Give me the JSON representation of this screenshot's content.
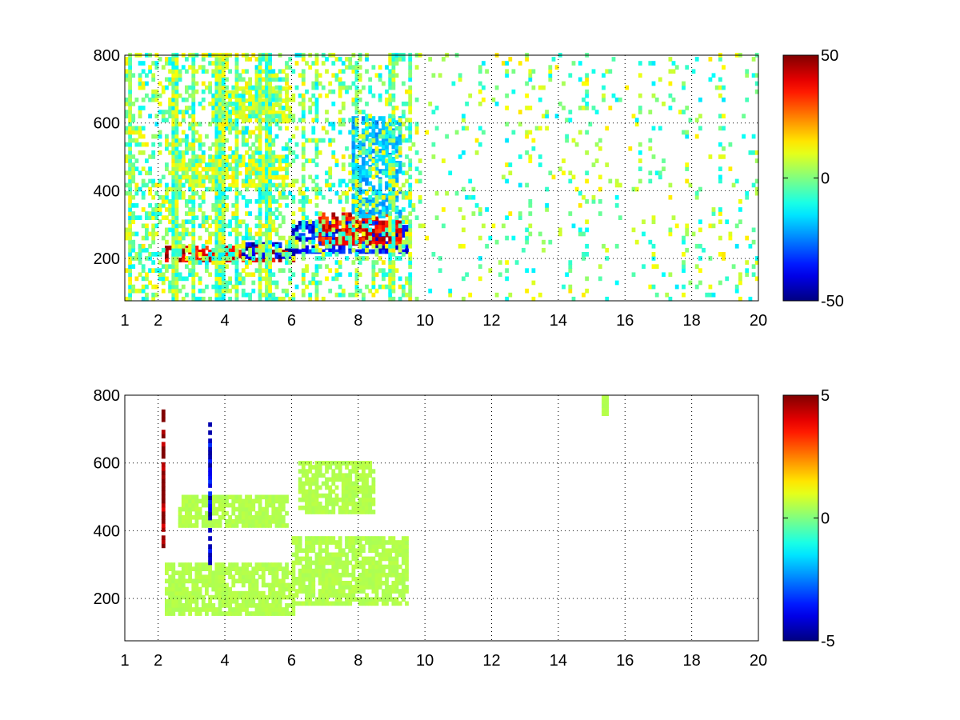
{
  "chart_data": [
    {
      "type": "heatmap",
      "title": "",
      "xlabel": "",
      "ylabel": "",
      "xlim": [
        1,
        20
      ],
      "ylim": [
        75,
        800
      ],
      "grid": true,
      "x_ticks": [
        1,
        2,
        4,
        6,
        8,
        10,
        12,
        14,
        16,
        18,
        20
      ],
      "y_ticks": [
        200,
        400,
        600,
        800
      ],
      "colorbar": {
        "colormap": "jet",
        "min": -50,
        "max": 50,
        "ticks": [
          50,
          0,
          -50
        ]
      },
      "features": [
        {
          "desc": "warm band",
          "x": [
            2.2,
            6.0
          ],
          "y": [
            190,
            235
          ],
          "value": 40
        },
        {
          "desc": "cold band",
          "x": [
            4.5,
            6.0
          ],
          "y": [
            200,
            240
          ],
          "value": -40
        },
        {
          "desc": "cold band",
          "x": [
            6.0,
            9.4
          ],
          "y": [
            215,
            310
          ],
          "value": -38
        },
        {
          "desc": "warm band",
          "x": [
            6.8,
            9.2
          ],
          "y": [
            240,
            330
          ],
          "value": 38
        },
        {
          "desc": "weak band",
          "x": [
            2.6,
            5.8
          ],
          "y": [
            410,
            500
          ],
          "value": 12
        },
        {
          "desc": "weak band",
          "x": [
            3.6,
            5.8
          ],
          "y": [
            600,
            700
          ],
          "value": 10
        },
        {
          "desc": "cold patch",
          "x": [
            7.8,
            9.2
          ],
          "y": [
            320,
            620
          ],
          "value": -20
        }
      ]
    },
    {
      "type": "heatmap",
      "title": "",
      "xlabel": "",
      "ylabel": "",
      "xlim": [
        1,
        20
      ],
      "ylim": [
        75,
        800
      ],
      "grid": true,
      "x_ticks": [
        1,
        2,
        4,
        6,
        8,
        10,
        12,
        14,
        16,
        18,
        20
      ],
      "y_ticks": [
        200,
        400,
        600,
        800
      ],
      "colorbar": {
        "colormap": "jet",
        "min": -5,
        "max": 5,
        "ticks": [
          5,
          0,
          -5
        ]
      },
      "features": [
        {
          "desc": "band",
          "x": [
            2.2,
            6.0
          ],
          "y": [
            150,
            300
          ],
          "value": 0.5
        },
        {
          "desc": "band",
          "x": [
            6.0,
            9.4
          ],
          "y": [
            180,
            380
          ],
          "value": 0.5
        },
        {
          "desc": "band",
          "x": [
            2.6,
            5.8
          ],
          "y": [
            410,
            500
          ],
          "value": 0.5
        },
        {
          "desc": "band",
          "x": [
            6.2,
            8.4
          ],
          "y": [
            450,
            600
          ],
          "value": 0.5
        },
        {
          "desc": "spike",
          "x": [
            2.1,
            2.2
          ],
          "y": [
            350,
            750
          ],
          "value": 5
        },
        {
          "desc": "spike",
          "x": [
            3.5,
            3.6
          ],
          "y": [
            300,
            720
          ],
          "value": -4
        },
        {
          "desc": "spot",
          "x": [
            15.3,
            15.5
          ],
          "y": [
            740,
            790
          ],
          "value": 0.5
        }
      ]
    }
  ]
}
